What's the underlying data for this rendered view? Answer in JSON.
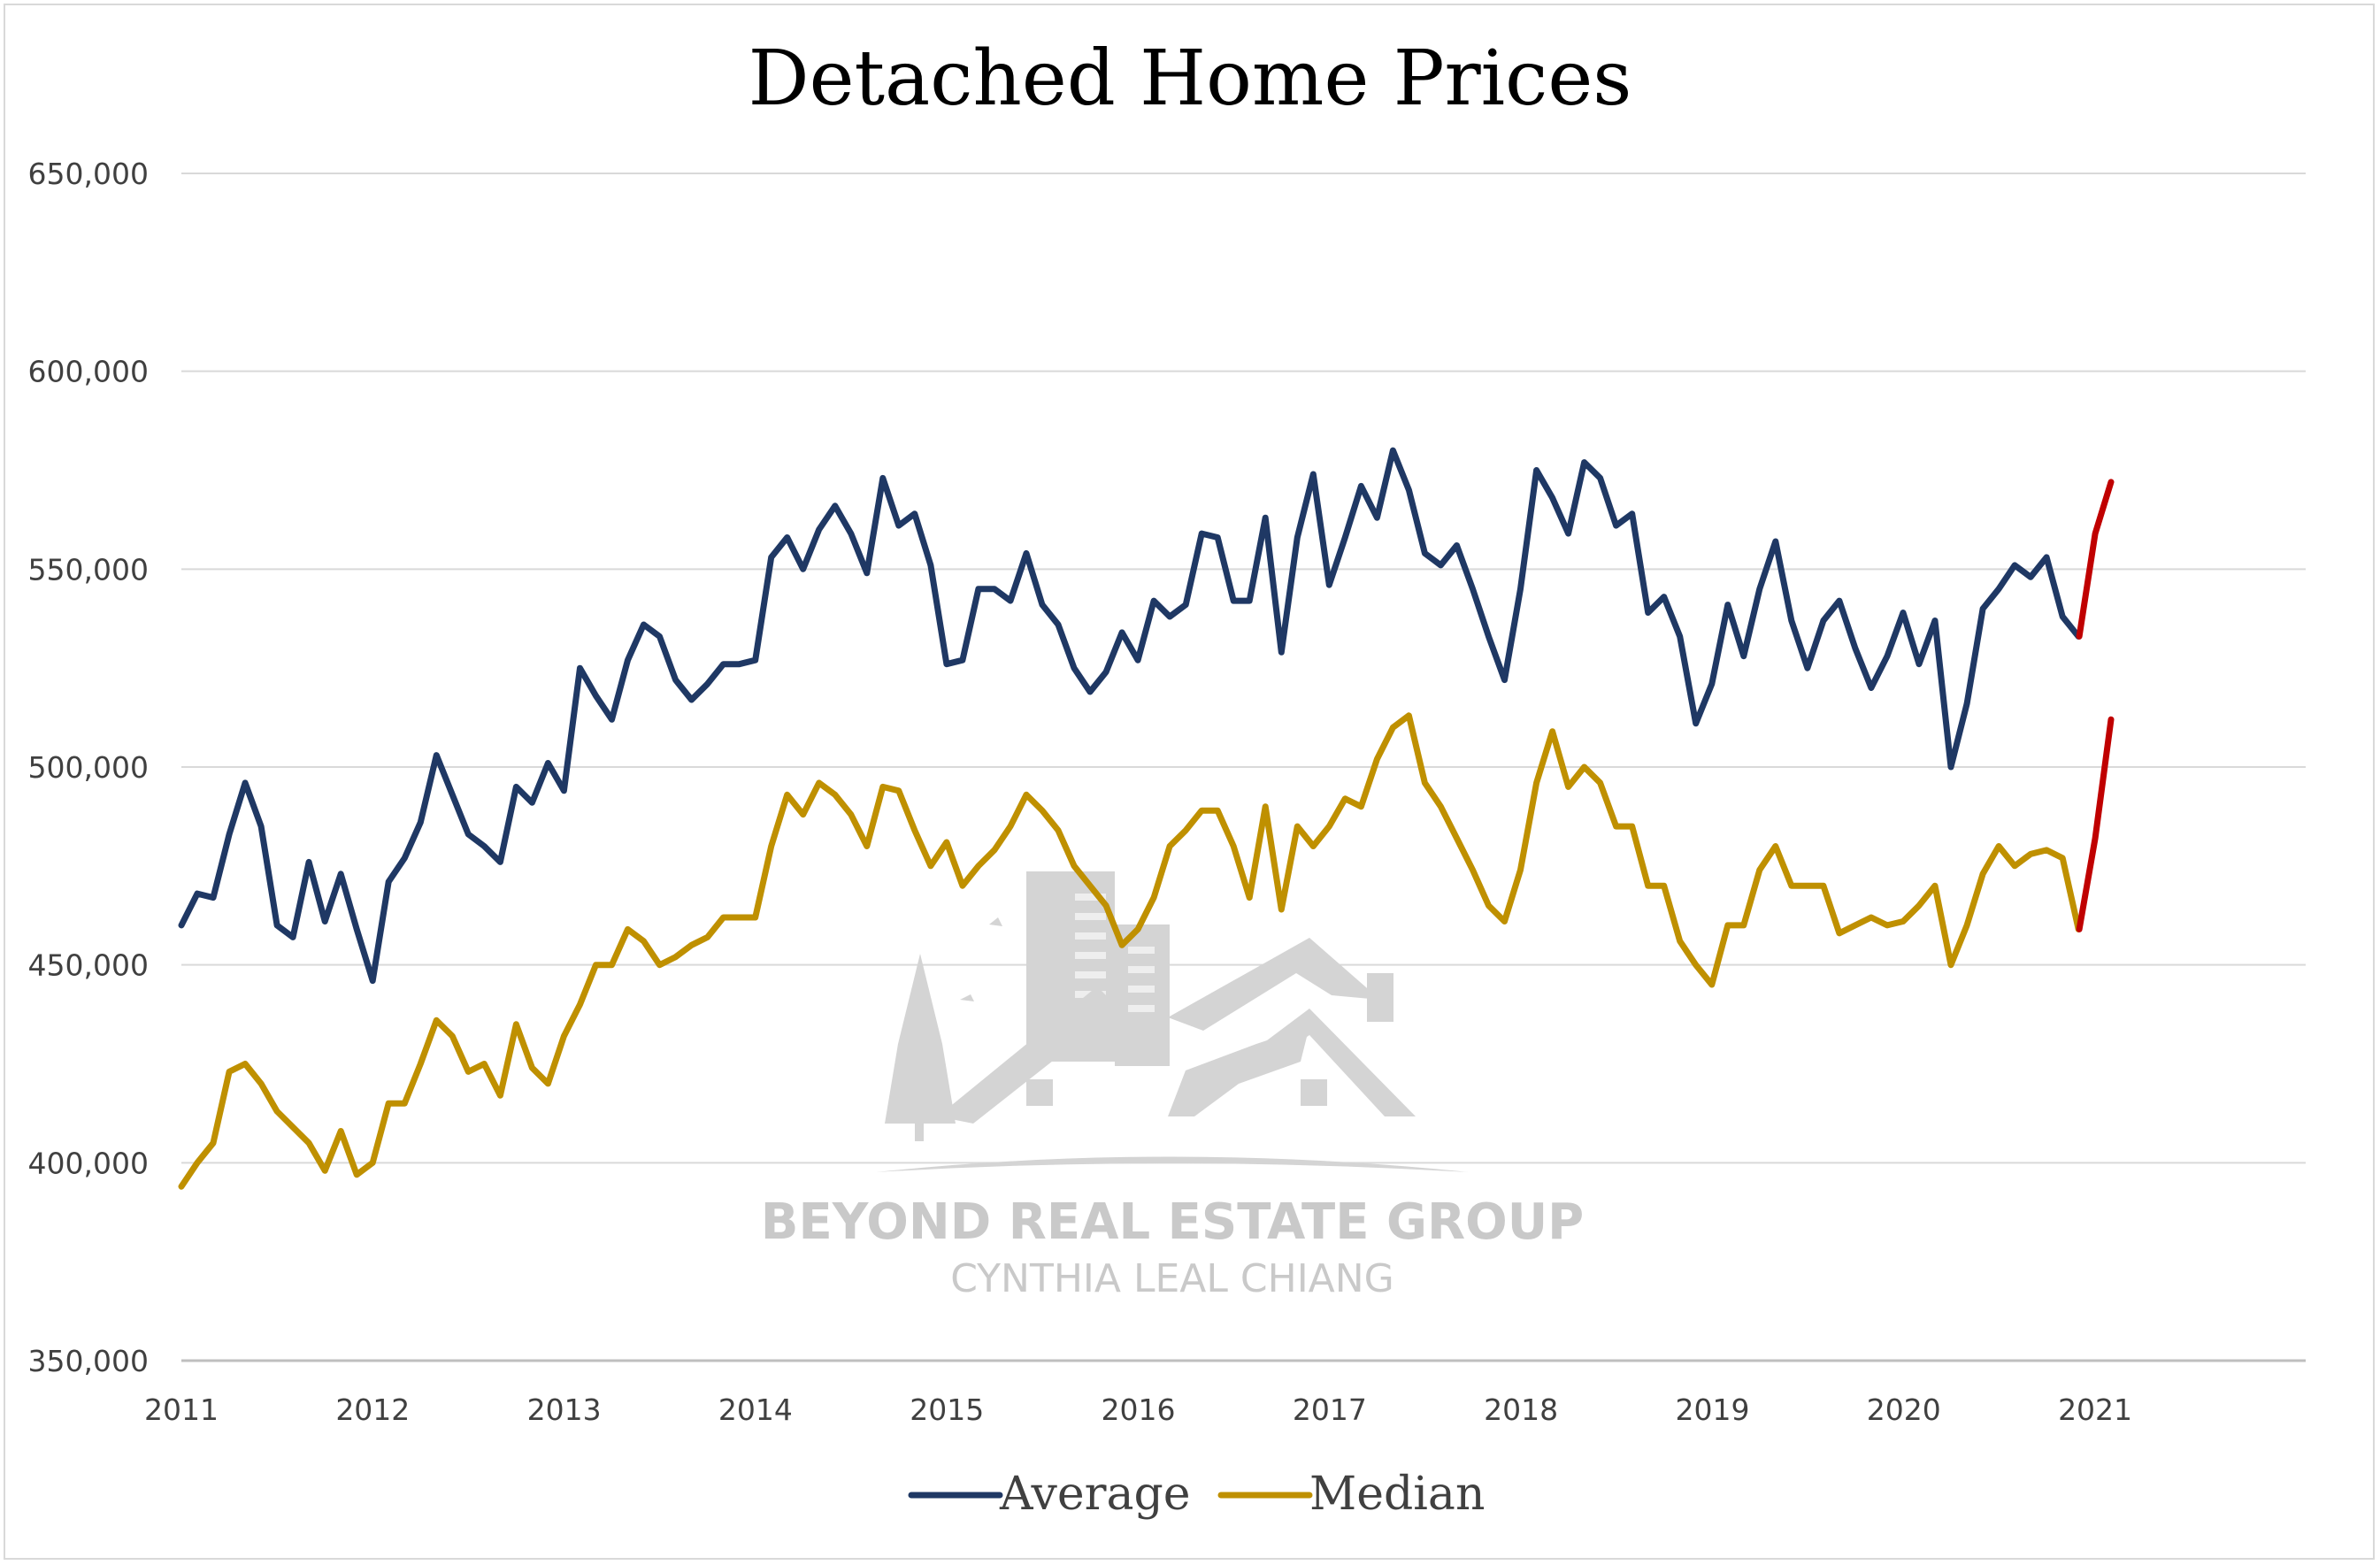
{
  "chart_data": {
    "type": "line",
    "title": "Detached Home Prices",
    "xlabel": "",
    "ylabel": "",
    "ylim": [
      350000,
      650000
    ],
    "yticks": [
      350000,
      400000,
      450000,
      500000,
      550000,
      600000,
      650000
    ],
    "ytick_labels": [
      "350,000",
      "400,000",
      "450,000",
      "500,000",
      "550,000",
      "600,000",
      "650,000"
    ],
    "xlim": [
      2011,
      2022.1
    ],
    "xticks": [
      "2011",
      "2012",
      "2013",
      "2014",
      "2015",
      "2016",
      "2017",
      "2018",
      "2019",
      "2020",
      "2021"
    ],
    "grid": true,
    "legend_position": "bottom",
    "series": [
      {
        "name": "Average",
        "color": "#1f3864",
        "x_start": 2011.0,
        "x_step": 0.0833,
        "values": [
          460000,
          468000,
          467000,
          483000,
          496000,
          485000,
          460000,
          457000,
          476000,
          461000,
          473000,
          459000,
          446000,
          471000,
          477000,
          486000,
          503000,
          493000,
          483000,
          480000,
          476000,
          495000,
          491000,
          501000,
          494000,
          525000,
          518000,
          512000,
          527000,
          536000,
          533000,
          522000,
          517000,
          521000,
          526000,
          526000,
          527000,
          553000,
          558000,
          550000,
          560000,
          566000,
          559000,
          549000,
          573000,
          561000,
          564000,
          551000,
          526000,
          527000,
          545000,
          545000,
          542000,
          554000,
          541000,
          536000,
          525000,
          519000,
          524000,
          534000,
          527000,
          542000,
          538000,
          541000,
          559000,
          558000,
          542000,
          542000,
          563000,
          529000,
          558000,
          574000,
          546000,
          558000,
          571000,
          563000,
          580000,
          570000,
          554000,
          551000,
          556000,
          545000,
          533000,
          522000,
          545000,
          575000,
          568000,
          559000,
          577000,
          573000,
          561000,
          564000,
          539000,
          543000,
          533000,
          511000,
          521000,
          541000,
          528000,
          545000,
          557000,
          537000,
          525000,
          537000,
          542000,
          530000,
          520000,
          528000,
          539000,
          526000,
          537000,
          500000,
          516000,
          540000,
          545000,
          551000,
          548000,
          553000,
          538000,
          533000
        ]
      },
      {
        "name": "Median",
        "color": "#bf9000",
        "x_start": 2011.0,
        "x_step": 0.0833,
        "values": [
          394000,
          400000,
          405000,
          423000,
          425000,
          420000,
          413000,
          409000,
          405000,
          398000,
          408000,
          397000,
          400000,
          415000,
          415000,
          425000,
          436000,
          432000,
          423000,
          425000,
          417000,
          435000,
          424000,
          420000,
          432000,
          440000,
          450000,
          450000,
          459000,
          456000,
          450000,
          452000,
          455000,
          457000,
          462000,
          462000,
          462000,
          480000,
          493000,
          488000,
          496000,
          493000,
          488000,
          480000,
          495000,
          494000,
          484000,
          475000,
          481000,
          470000,
          475000,
          479000,
          485000,
          493000,
          489000,
          484000,
          475000,
          470000,
          465000,
          455000,
          459000,
          467000,
          480000,
          484000,
          489000,
          489000,
          480000,
          467000,
          490000,
          464000,
          485000,
          480000,
          485000,
          492000,
          490000,
          502000,
          510000,
          513000,
          496000,
          490000,
          482000,
          474000,
          465000,
          461000,
          474000,
          496000,
          509000,
          495000,
          500000,
          496000,
          485000,
          485000,
          470000,
          470000,
          456000,
          450000,
          445000,
          460000,
          460000,
          474000,
          480000,
          470000,
          470000,
          470000,
          458000,
          460000,
          462000,
          460000,
          461000,
          465000,
          470000,
          450000,
          460000,
          473000,
          480000,
          475000,
          478000,
          479000,
          477000,
          459000
        ]
      },
      {
        "name": "",
        "color": "#c00000",
        "x": [
          2020.917,
          2021.0,
          2021.083
        ],
        "values": [
          533000,
          559000,
          572000
        ]
      },
      {
        "name": "",
        "color": "#c00000",
        "x": [
          2020.917,
          2021.0,
          2021.083
        ],
        "values": [
          459000,
          482000,
          512000
        ]
      }
    ],
    "legend": [
      {
        "label": "Average",
        "color": "#1f3864"
      },
      {
        "label": "Median",
        "color": "#bf9000"
      }
    ]
  },
  "watermark": {
    "line1": "BEYOND REAL ESTATE GROUP",
    "line2": "CYNTHIA LEAL CHIANG"
  }
}
